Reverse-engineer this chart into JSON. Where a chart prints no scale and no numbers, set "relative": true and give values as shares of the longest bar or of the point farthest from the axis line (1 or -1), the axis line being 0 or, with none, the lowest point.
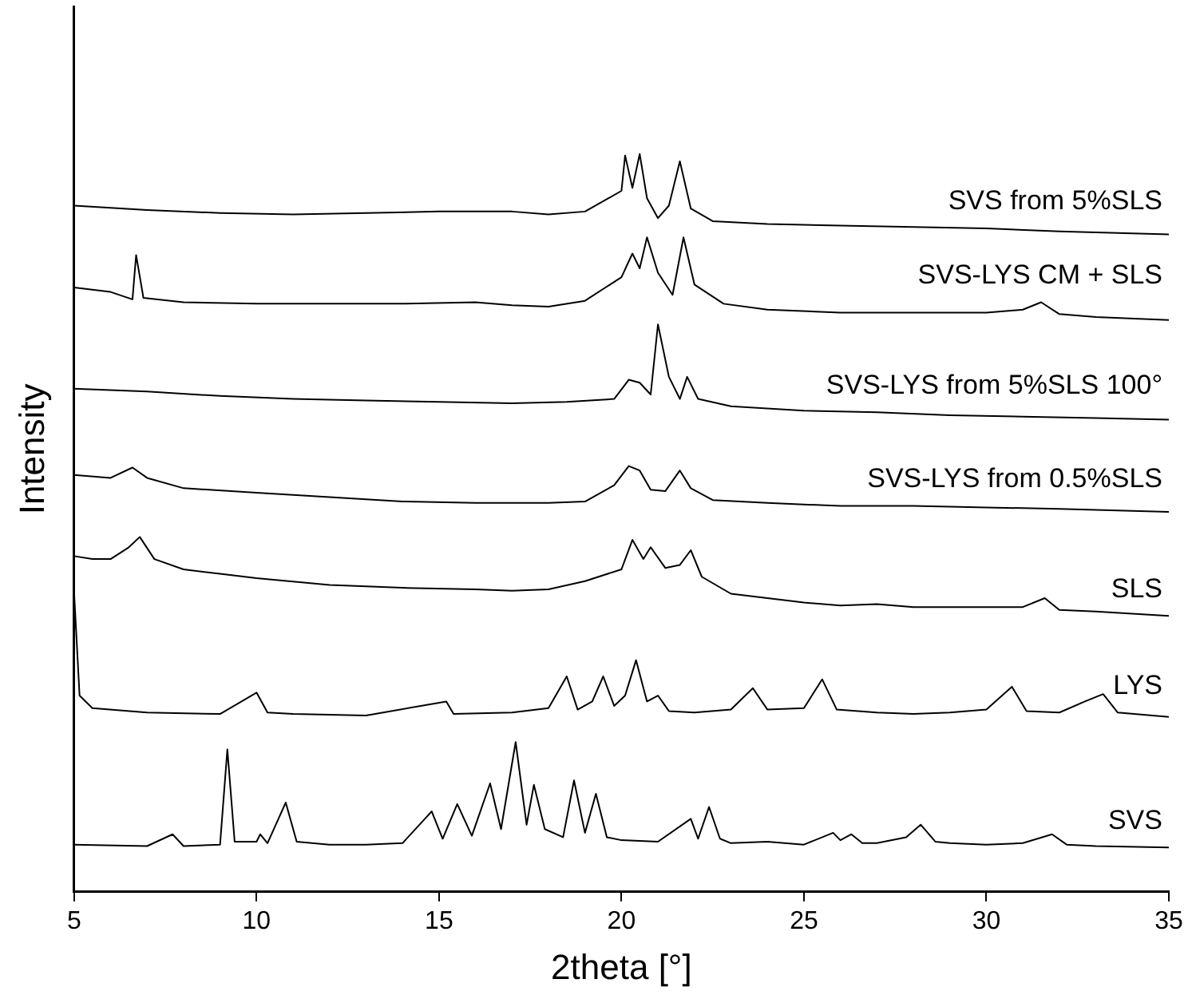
{
  "chart_data": {
    "type": "line",
    "relative": true,
    "xlabel": "2theta [°]",
    "ylabel": "Intensity",
    "xlim": [
      5,
      35
    ],
    "xticks": [
      5,
      10,
      15,
      20,
      25,
      30,
      35
    ],
    "grid": false,
    "legend": false,
    "marker": "none",
    "line_style": "solid",
    "series": [
      {
        "name": "SVS from 5%SLS",
        "color": "#000000",
        "x": [
          5,
          7,
          9,
          11,
          13,
          15,
          17,
          18,
          19,
          20,
          20.1,
          20.3,
          20.5,
          20.7,
          21,
          21.3,
          21.6,
          21.9,
          22.5,
          24,
          26,
          28,
          30,
          32,
          35
        ],
        "values": [
          0.93,
          0.924,
          0.92,
          0.918,
          0.92,
          0.922,
          0.922,
          0.918,
          0.922,
          0.95,
          0.998,
          0.954,
          1,
          0.94,
          0.913,
          0.93,
          0.99,
          0.926,
          0.909,
          0.905,
          0.903,
          0.901,
          0.899,
          0.895,
          0.891
        ]
      },
      {
        "name": "SVS-LYS CM + SLS",
        "color": "#000000",
        "x": [
          5,
          6,
          6.6,
          6.7,
          6.9,
          8,
          10,
          12,
          14,
          16,
          17,
          18,
          19,
          20,
          20.3,
          20.5,
          20.7,
          21,
          21.4,
          21.7,
          22,
          22.8,
          24,
          26,
          28,
          30,
          31,
          31.5,
          32,
          33,
          35
        ],
        "values": [
          0.819,
          0.813,
          0.803,
          0.863,
          0.805,
          0.799,
          0.797,
          0.797,
          0.797,
          0.799,
          0.795,
          0.793,
          0.801,
          0.833,
          0.865,
          0.845,
          0.887,
          0.839,
          0.809,
          0.887,
          0.823,
          0.797,
          0.789,
          0.785,
          0.785,
          0.785,
          0.789,
          0.799,
          0.783,
          0.779,
          0.775
        ]
      },
      {
        "name": "SVS-LYS from 5%SLS 100°",
        "color": "#000000",
        "x": [
          5,
          7,
          9,
          11,
          13,
          15,
          17,
          18.5,
          19.8,
          20.2,
          20.5,
          20.8,
          21,
          21.3,
          21.6,
          21.8,
          22.1,
          23,
          25,
          27,
          29,
          31,
          33,
          35
        ],
        "values": [
          0.682,
          0.678,
          0.672,
          0.668,
          0.666,
          0.664,
          0.662,
          0.664,
          0.668,
          0.694,
          0.69,
          0.674,
          0.769,
          0.698,
          0.668,
          0.698,
          0.668,
          0.658,
          0.652,
          0.65,
          0.646,
          0.644,
          0.642,
          0.64
        ]
      },
      {
        "name": "SVS-LYS from 0.5%SLS",
        "color": "#000000",
        "x": [
          5,
          6,
          6.6,
          7,
          8,
          10,
          12,
          14,
          16,
          18,
          19,
          19.8,
          20.2,
          20.5,
          20.8,
          21.2,
          21.6,
          21.9,
          22.5,
          24,
          26,
          28,
          30,
          32,
          35
        ],
        "values": [
          0.565,
          0.561,
          0.575,
          0.561,
          0.547,
          0.541,
          0.535,
          0.529,
          0.527,
          0.527,
          0.529,
          0.551,
          0.577,
          0.571,
          0.545,
          0.543,
          0.571,
          0.547,
          0.531,
          0.527,
          0.523,
          0.523,
          0.521,
          0.519,
          0.515
        ]
      },
      {
        "name": "SLS",
        "color": "#000000",
        "x": [
          5,
          5.5,
          6,
          6.5,
          6.8,
          7.2,
          8,
          9,
          10,
          12,
          14,
          16,
          17,
          18,
          19,
          20,
          20.3,
          20.6,
          20.8,
          21.2,
          21.6,
          21.9,
          22.2,
          23,
          25,
          26,
          27,
          28,
          30,
          31,
          31.6,
          32,
          33,
          35
        ],
        "values": [
          0.455,
          0.451,
          0.451,
          0.467,
          0.481,
          0.451,
          0.437,
          0.431,
          0.425,
          0.416,
          0.412,
          0.41,
          0.408,
          0.41,
          0.421,
          0.437,
          0.477,
          0.451,
          0.467,
          0.439,
          0.443,
          0.463,
          0.427,
          0.404,
          0.392,
          0.388,
          0.39,
          0.386,
          0.386,
          0.386,
          0.398,
          0.382,
          0.38,
          0.374
        ]
      },
      {
        "name": "LYS",
        "color": "#000000",
        "x": [
          5,
          5.15,
          5.5,
          7,
          9,
          10,
          10.3,
          11,
          13,
          15.2,
          15.4,
          17,
          18,
          18.5,
          18.8,
          19.2,
          19.5,
          19.8,
          20.1,
          20.4,
          20.7,
          21,
          21.3,
          22,
          23,
          23.6,
          24,
          25,
          25.5,
          25.9,
          27,
          28,
          29,
          30,
          30.7,
          31.1,
          32,
          32.7,
          33.2,
          33.6,
          35
        ],
        "values": [
          0.406,
          0.266,
          0.249,
          0.243,
          0.241,
          0.27,
          0.243,
          0.241,
          0.239,
          0.258,
          0.241,
          0.243,
          0.249,
          0.292,
          0.247,
          0.258,
          0.292,
          0.252,
          0.266,
          0.314,
          0.258,
          0.266,
          0.245,
          0.243,
          0.247,
          0.276,
          0.247,
          0.249,
          0.288,
          0.247,
          0.243,
          0.241,
          0.243,
          0.247,
          0.278,
          0.245,
          0.243,
          0.258,
          0.268,
          0.243,
          0.237
        ]
      },
      {
        "name": "SVS",
        "color": "#000000",
        "x": [
          5,
          7,
          7.7,
          8,
          9,
          9.2,
          9.4,
          10,
          10.1,
          10.3,
          10.8,
          11.1,
          12,
          13,
          14,
          14.8,
          15.1,
          15.5,
          15.9,
          16.4,
          16.7,
          17.1,
          17.4,
          17.6,
          17.9,
          18.4,
          18.7,
          19,
          19.3,
          19.6,
          20,
          21,
          21.9,
          22.1,
          22.4,
          22.7,
          23,
          24,
          25,
          25.8,
          26,
          26.3,
          26.6,
          27,
          27.8,
          28.2,
          28.6,
          29,
          30,
          31,
          31.8,
          32.2,
          33,
          35
        ],
        "values": [
          0.064,
          0.062,
          0.078,
          0.062,
          0.064,
          0.193,
          0.068,
          0.068,
          0.078,
          0.066,
          0.121,
          0.068,
          0.064,
          0.064,
          0.066,
          0.109,
          0.072,
          0.119,
          0.076,
          0.147,
          0.085,
          0.203,
          0.091,
          0.145,
          0.085,
          0.074,
          0.151,
          0.08,
          0.133,
          0.074,
          0.07,
          0.068,
          0.099,
          0.072,
          0.115,
          0.072,
          0.066,
          0.068,
          0.064,
          0.08,
          0.07,
          0.078,
          0.066,
          0.066,
          0.074,
          0.091,
          0.068,
          0.066,
          0.064,
          0.066,
          0.078,
          0.064,
          0.062,
          0.06
        ]
      }
    ]
  }
}
